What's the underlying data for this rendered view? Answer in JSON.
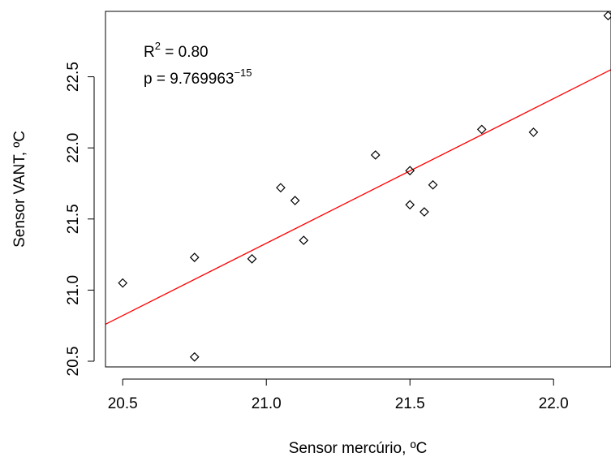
{
  "chart_data": {
    "type": "scatter",
    "title": "",
    "xlabel": "Sensor mercúrio, ºC",
    "ylabel": "Sensor VANT, ºC",
    "xlim": [
      20.44,
      22.2
    ],
    "ylim": [
      20.46,
      22.96
    ],
    "xticks": [
      "20.5",
      "21.0",
      "21.5",
      "22.0"
    ],
    "yticks": [
      "20.5",
      "21.0",
      "21.5",
      "22.0",
      "22.5"
    ],
    "grid": false,
    "legend": "none",
    "points": [
      {
        "x": 20.5,
        "y": 21.05
      },
      {
        "x": 20.75,
        "y": 21.23
      },
      {
        "x": 20.75,
        "y": 20.53
      },
      {
        "x": 20.95,
        "y": 21.22
      },
      {
        "x": 21.05,
        "y": 21.72
      },
      {
        "x": 21.1,
        "y": 21.63
      },
      {
        "x": 21.13,
        "y": 21.35
      },
      {
        "x": 21.38,
        "y": 21.95
      },
      {
        "x": 21.5,
        "y": 21.84
      },
      {
        "x": 21.5,
        "y": 21.6
      },
      {
        "x": 21.55,
        "y": 21.55
      },
      {
        "x": 21.58,
        "y": 21.74
      },
      {
        "x": 21.75,
        "y": 22.13
      },
      {
        "x": 21.93,
        "y": 22.11
      },
      {
        "x": 22.19,
        "y": 22.93
      }
    ],
    "fit_line": {
      "color": "#ff0000",
      "x": [
        20.44,
        22.2
      ],
      "y": [
        20.76,
        22.55
      ]
    },
    "point_color": "#000000",
    "annotations": {
      "r2_prefix": "R",
      "r2_exp": "2",
      "r2_value": " = 0.80",
      "p_text": "p =  9.769963",
      "p_exp": "−15"
    }
  }
}
